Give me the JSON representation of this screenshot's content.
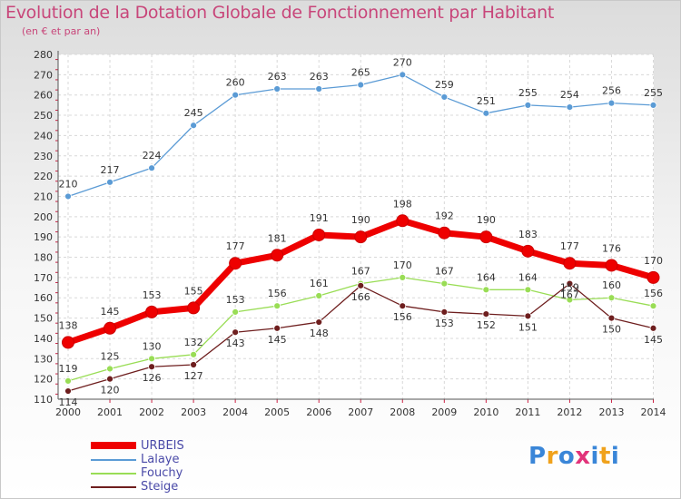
{
  "title": "Evolution de la Dotation Globale de Fonctionnement par Habitant",
  "subtitle": "(en € et par an)",
  "logo": {
    "letters": [
      "P",
      "r",
      "o",
      "x",
      "i",
      "t",
      "i"
    ],
    "colors": [
      "#3a86d8",
      "#f0a21c",
      "#3a86d8",
      "#e2337a",
      "#3a86d8",
      "#f0a21c",
      "#3a86d8"
    ]
  },
  "chart_data": {
    "type": "line",
    "x": [
      2000,
      2001,
      2002,
      2003,
      2004,
      2005,
      2006,
      2007,
      2008,
      2009,
      2010,
      2011,
      2012,
      2013,
      2014
    ],
    "ylim": [
      110,
      280
    ],
    "yticks": [
      110,
      120,
      130,
      140,
      150,
      160,
      170,
      180,
      190,
      200,
      210,
      220,
      230,
      240,
      250,
      260,
      270,
      280
    ],
    "grid": true,
    "legend_position": "bottom",
    "series": [
      {
        "name": "URBEIS",
        "color": "#ee0000",
        "values": [
          138,
          145,
          153,
          155,
          177,
          181,
          191,
          190,
          198,
          192,
          190,
          183,
          177,
          176,
          170
        ]
      },
      {
        "name": "Lalaye",
        "color": "#5b9bd5",
        "values": [
          210,
          217,
          224,
          245,
          260,
          263,
          263,
          265,
          270,
          259,
          251,
          255,
          254,
          256,
          255
        ]
      },
      {
        "name": "Fouchy",
        "color": "#99dd55",
        "values": [
          119,
          125,
          130,
          132,
          153,
          156,
          161,
          167,
          170,
          167,
          164,
          164,
          159,
          160,
          156
        ]
      },
      {
        "name": "Steige",
        "color": "#6e1e1e",
        "values": [
          114,
          120,
          126,
          127,
          143,
          145,
          148,
          166,
          156,
          153,
          152,
          151,
          167,
          150,
          145
        ]
      }
    ]
  }
}
